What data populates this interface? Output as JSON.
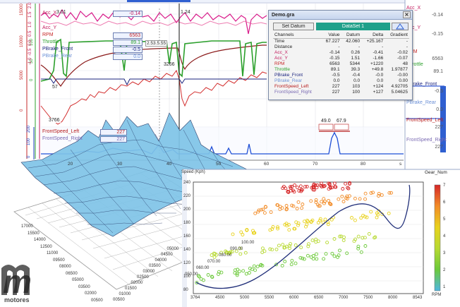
{
  "left_legend": [
    {
      "label": "Acc_X",
      "value": "-0.14",
      "color": "#c2185b"
    },
    {
      "label": "Acc_Y",
      "value": "",
      "color": "#c2185b"
    },
    {
      "label": "RPM",
      "value": "6563",
      "color": "#c62828"
    },
    {
      "label": "Throttle",
      "value": "89.1",
      "color": "#2ca02c"
    },
    {
      "label": "PBrake_Front",
      "value": "-0.5",
      "color": "#1a237e"
    },
    {
      "label": "PBrake_Rear",
      "value": "0.0",
      "color": "#6a8fd6"
    }
  ],
  "speed_legend": [
    {
      "label": "FrontSpeed_Left",
      "value": "227",
      "color": "#b71c1c"
    },
    {
      "label": "FrontSpeed_Right",
      "value": "227",
      "color": "#7a6ab3"
    }
  ],
  "plot_annotations": {
    "acc_cursor": "3.01",
    "acc_cursor2": "1.24",
    "rpm_point": "3766",
    "rpm_point2": "3266",
    "throttle_point": "57",
    "delta_label": "2.53.5.55",
    "speed_flag1": "49.0",
    "speed_flag2": "67.9"
  },
  "left_axes": {
    "rpm_ticks": [
      "15000",
      "10000",
      "5000",
      "0"
    ],
    "throttle_ticks": [
      "100",
      "50",
      "0"
    ],
    "accel_ticks": [
      "2.0",
      "1.5",
      "1.0",
      "0.5",
      "0.0",
      "-0.5",
      "-1.0"
    ],
    "speed_ticks": [
      "200",
      "100",
      "0"
    ]
  },
  "time_axis": {
    "ticks": [
      "20",
      "30",
      "40",
      "50",
      "60",
      "70",
      "80"
    ],
    "unit": "s"
  },
  "right_panel": [
    {
      "label": "Acc_X",
      "value": "-0.14",
      "color": "#c2185b"
    },
    {
      "label": "Acc_Y",
      "value": "-0.15",
      "color": "#c2185b"
    },
    {
      "label": "RPM",
      "value": "6563",
      "color": "#c62828"
    },
    {
      "label": "Throttle",
      "value": "89.1",
      "color": "#2ca02c"
    },
    {
      "label": "PBrake_Front",
      "value": "-0.5",
      "color": "#1a237e"
    },
    {
      "label": "PBrake_Rear",
      "value": "0.0",
      "color": "#6a8fd6"
    },
    {
      "label": "FrontSpeed_Left",
      "value": "227",
      "color": "#b71c1c"
    },
    {
      "label": "FrontSpeed_Right",
      "value": "227",
      "color": "#7a6ab3"
    }
  ],
  "dialog": {
    "title": "Demo.gra",
    "set_datum_label": "Set Datum",
    "dataset_label": "DataSet 1",
    "headers": [
      "Channels",
      "Value",
      "Datum",
      "Delta",
      "Gradient"
    ],
    "rows": [
      {
        "channel": "Time",
        "value": "67.227",
        "datum": "42.060",
        "delta": "+25.167",
        "gradient": "-",
        "color": "#222222"
      },
      {
        "channel": "Distance",
        "value": "-",
        "datum": "-",
        "delta": "-",
        "gradient": "-",
        "color": "#222222"
      },
      {
        "channel": "Acc_X",
        "value": "-0.14",
        "datum": "0.26",
        "delta": "-0.41",
        "gradient": "-0.02",
        "color": "#c2185b"
      },
      {
        "channel": "Acc_Y",
        "value": "-0.15",
        "datum": "1.51",
        "delta": "-1.66",
        "gradient": "-0.07",
        "color": "#c2185b"
      },
      {
        "channel": "RPM",
        "value": "6563",
        "datum": "5344",
        "delta": "+1220",
        "gradient": "48",
        "color": "#c62828"
      },
      {
        "channel": "Throttle",
        "value": "89.1",
        "datum": "39.3",
        "delta": "+49.8",
        "gradient": "1.97877",
        "color": "#2ca02c"
      },
      {
        "channel": "PBrake_Front",
        "value": "-0.5",
        "datum": "-0.4",
        "delta": "-0.0",
        "gradient": "-0.00",
        "color": "#1a237e"
      },
      {
        "channel": "PBrake_Rear",
        "value": "0.0",
        "datum": "0.0",
        "delta": "0.0",
        "gradient": "0.00",
        "color": "#6a8fd6"
      },
      {
        "channel": "FrontSpeed_Left",
        "value": "227",
        "datum": "103",
        "delta": "+124",
        "gradient": "4.92705",
        "color": "#b71c1c"
      },
      {
        "channel": "FrontSpeed_Right",
        "value": "227",
        "datum": "100",
        "delta": "+127",
        "gradient": "5.04625",
        "color": "#7a6ab3"
      }
    ]
  },
  "surface_3d": {
    "axis_labels": [
      "17000",
      "15500",
      "14000",
      "12500",
      "11000",
      "09500",
      "08000",
      "06500",
      "05000",
      "03500",
      "02000",
      "00500"
    ],
    "axis_labels_b": [
      "00500",
      "01000",
      "01500",
      "02000",
      "02500",
      "03000",
      "03500",
      "04000",
      "04500",
      "05000"
    ],
    "axis_labels_c": [
      "050.00",
      "060.00",
      "070.00",
      "080.00",
      "090.00",
      "100.00"
    ],
    "speed_label": "Speed (Kph)"
  },
  "gear_scatter": {
    "title": "Gear_Num",
    "x_ticks": [
      "3764",
      "4500",
      "5000",
      "5500",
      "6000",
      "6500",
      "7000",
      "7500",
      "8000",
      "8543"
    ],
    "y_ticks": [
      "240",
      "220",
      "200",
      "180",
      "160",
      "140",
      "120",
      "100",
      "80"
    ],
    "colorbar_ticks": [
      "7",
      "6",
      "5",
      "4",
      "3",
      "2",
      "1"
    ],
    "colorbar_label": "RPM",
    "bands": [
      {
        "gear": 6,
        "color": "#d62728"
      },
      {
        "gear": 5,
        "color": "#f28c28"
      },
      {
        "gear": 4,
        "color": "#e8d21d"
      },
      {
        "gear": 3,
        "color": "#b7d932"
      },
      {
        "gear": 2,
        "color": "#6cc93a"
      }
    ]
  },
  "watermark": "motores"
}
